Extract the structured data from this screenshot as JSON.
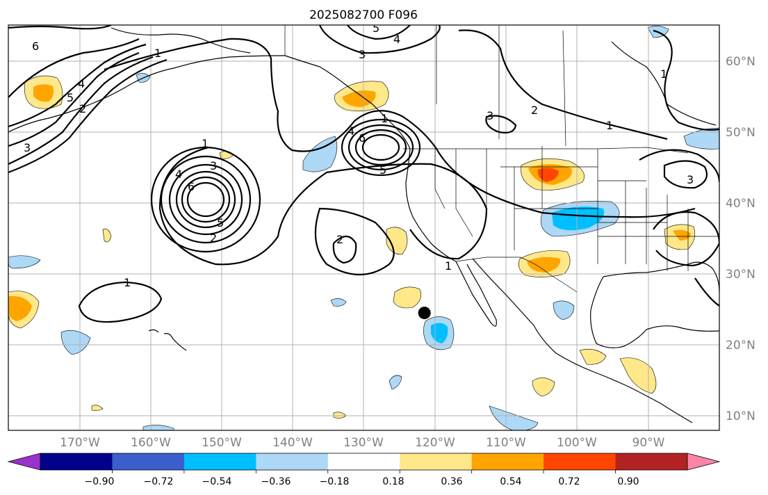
{
  "title": "2025082700 F096",
  "latitude_labels": [
    "60°N",
    "50°N",
    "40°N",
    "30°N",
    "20°N",
    "10°N"
  ],
  "longitude_labels": [
    "170°W",
    "160°W",
    "150°W",
    "140°W",
    "130°W",
    "120°W",
    "110°W",
    "100°W",
    "90°W"
  ],
  "colorbar": {
    "tick_labels": [
      "−0.90",
      "−0.72",
      "−0.54",
      "−0.36",
      "−0.18",
      "0.18",
      "0.36",
      "0.54",
      "0.72",
      "0.90"
    ],
    "colors": [
      "#9932cc",
      "#00008b",
      "#3a5fcd",
      "#00bfff",
      "#add8f6",
      "#ffffff",
      "#ffe88a",
      "#ffa500",
      "#ff4500",
      "#b22222",
      "#ff85a8"
    ]
  },
  "contour_labels": [
    "6",
    "1",
    "5",
    "4",
    "3",
    "2",
    "1",
    "5",
    "4",
    "3",
    "3",
    "2",
    "1",
    "4",
    "6",
    "5",
    "1",
    "3",
    "4",
    "6",
    "5",
    "2",
    "2",
    "1",
    "1",
    "1",
    "3"
  ],
  "marker": {
    "label": "",
    "lat": 24.5,
    "lon": -121.5
  }
}
